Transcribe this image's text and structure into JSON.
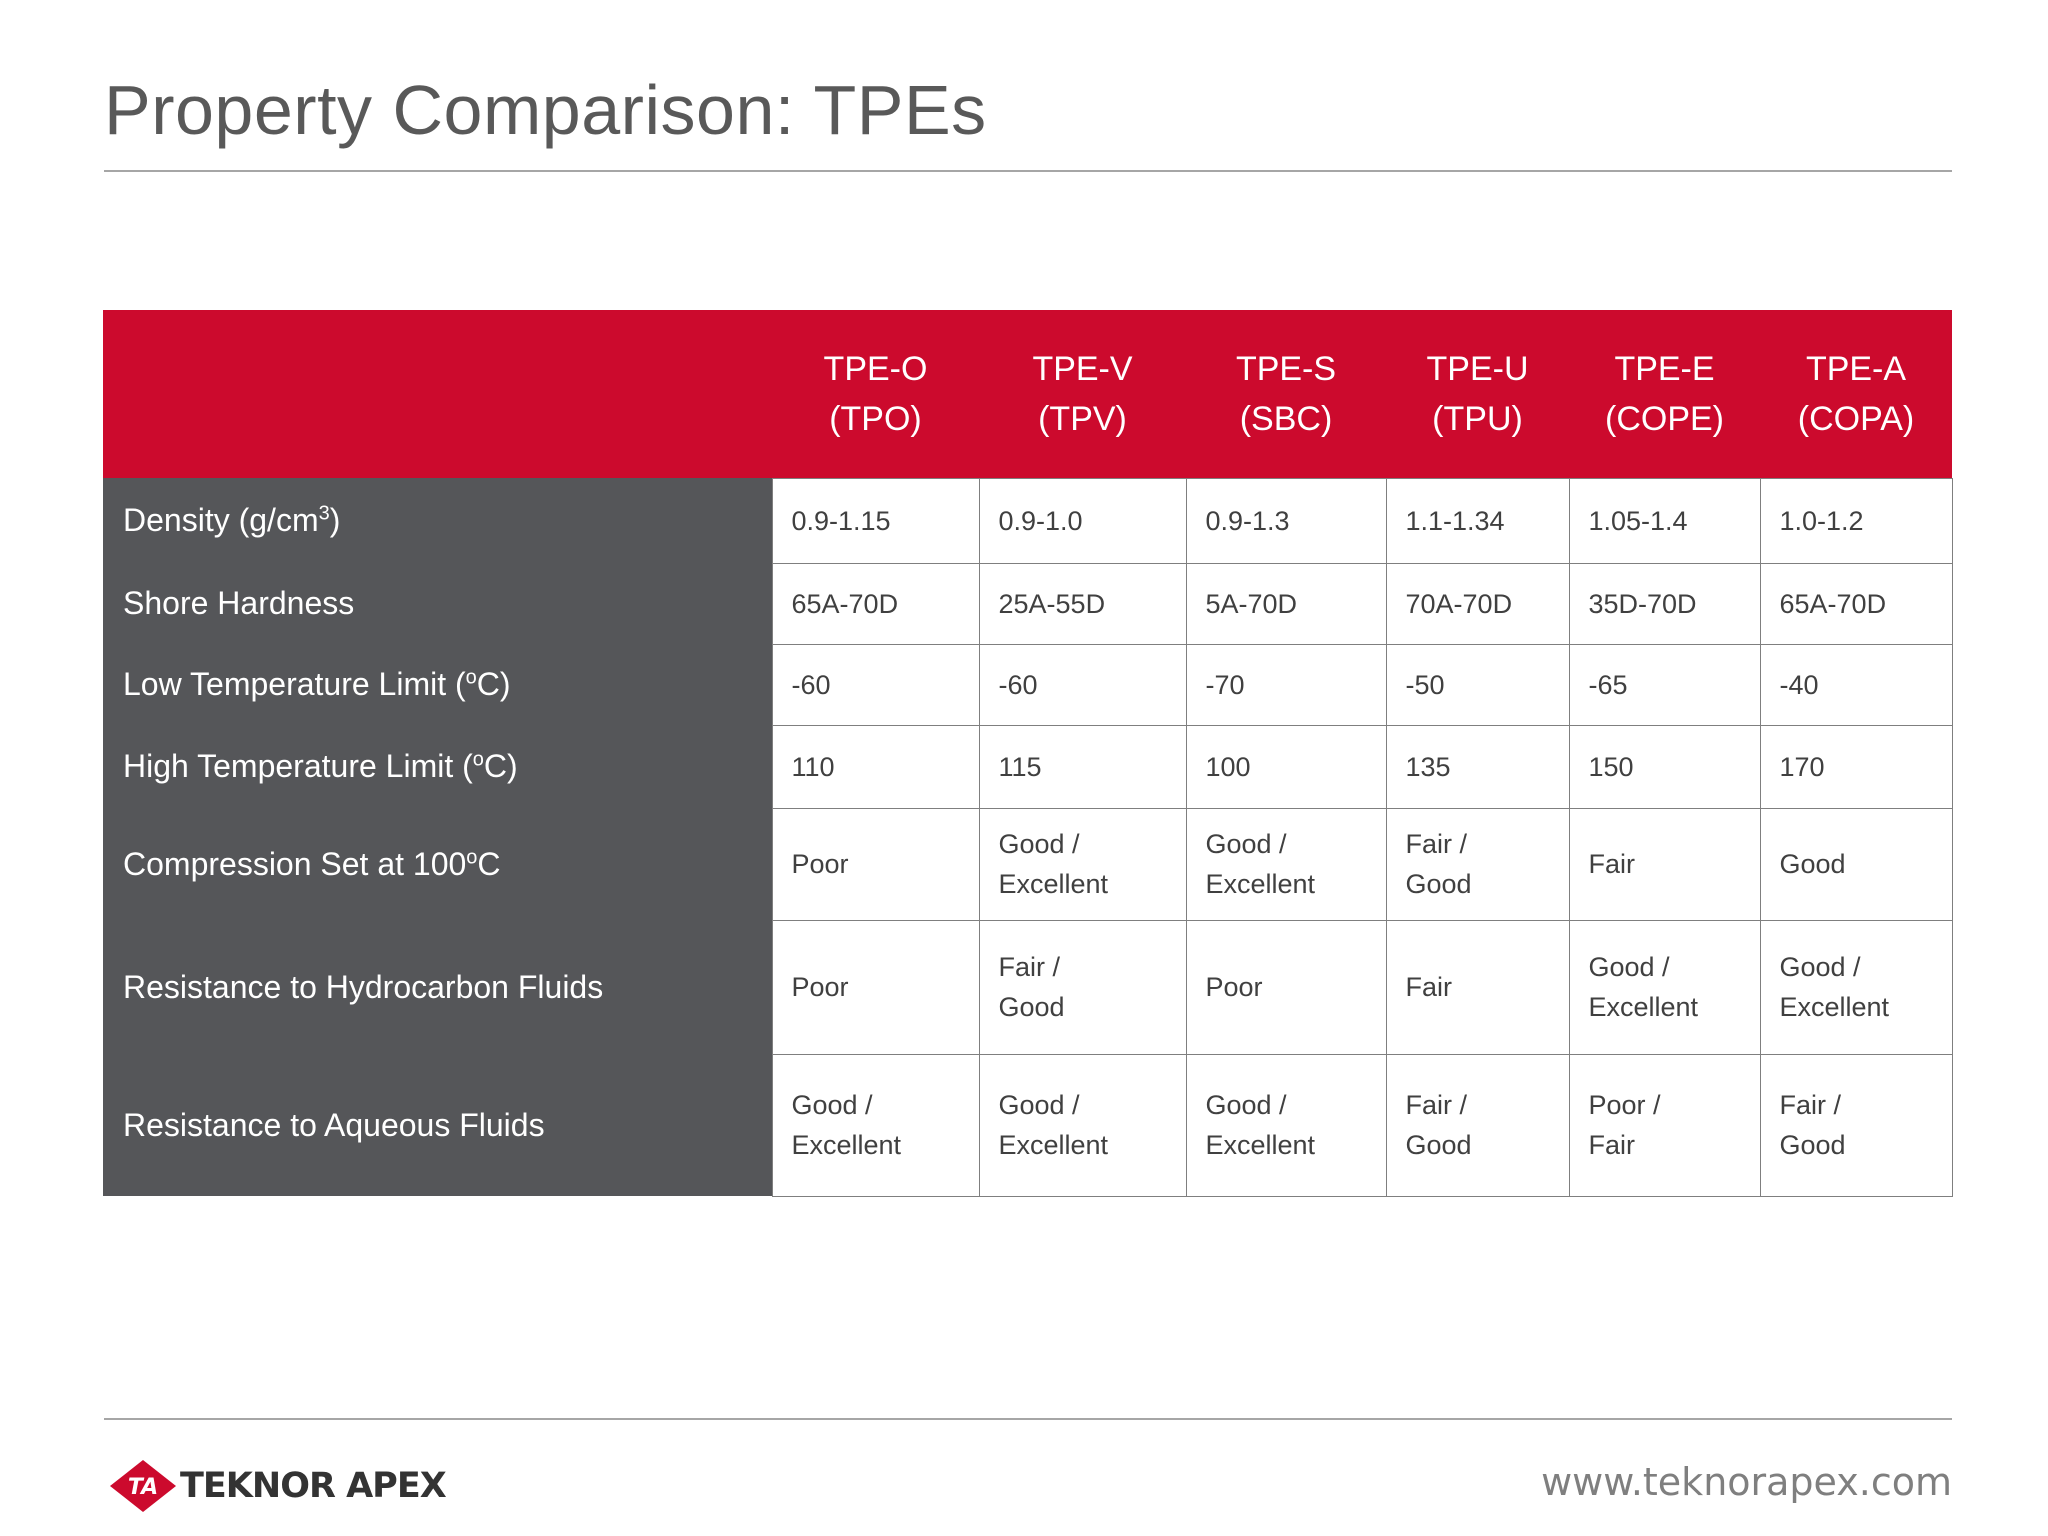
{
  "title": "Property Comparison: TPEs",
  "table": {
    "columns": [
      {
        "line1": "TPE-O",
        "line2": "(TPO)"
      },
      {
        "line1": "TPE-V",
        "line2": "(TPV)"
      },
      {
        "line1": "TPE-S",
        "line2": "(SBC)"
      },
      {
        "line1": "TPE-U",
        "line2": "(TPU)"
      },
      {
        "line1": "TPE-E",
        "line2": "(COPE)"
      },
      {
        "line1": "TPE-A",
        "line2": "(COPA)"
      }
    ],
    "rows": [
      {
        "label": "Density (g/cm",
        "label_sup": "3",
        "label_suffix": ")",
        "cells": [
          "0.9-1.15",
          "0.9-1.0",
          "0.9-1.3",
          "1.1-1.34",
          "1.05-1.4",
          "1.0-1.2"
        ]
      },
      {
        "label": "Shore Hardness",
        "label_sup": "",
        "label_suffix": "",
        "cells": [
          "65A-70D",
          "25A-55D",
          "5A-70D",
          "70A-70D",
          "35D-70D",
          "65A-70D"
        ]
      },
      {
        "label": "Low Temperature Limit (",
        "label_sup": "o",
        "label_suffix": "C)",
        "cells": [
          "-60",
          "-60",
          "-70",
          "-50",
          "-65",
          "-40"
        ]
      },
      {
        "label": "High Temperature Limit (",
        "label_sup": "o",
        "label_suffix": "C)",
        "cells": [
          "110",
          "115",
          "100",
          "135",
          "150",
          "170"
        ]
      },
      {
        "label": "Compression Set  at 100",
        "label_sup": "o",
        "label_suffix": "C",
        "cells": [
          "Poor",
          "Good /\nExcellent",
          "Good /\nExcellent",
          "Fair /\nGood",
          "Fair",
          "Good"
        ]
      },
      {
        "label": "Resistance to Hydrocarbon Fluids",
        "label_sup": "",
        "label_suffix": "",
        "cells": [
          "Poor",
          "Fair /\nGood",
          "Poor",
          "Fair",
          "Good /\nExcellent",
          "Good /\nExcellent"
        ]
      },
      {
        "label": "Resistance to Aqueous Fluids",
        "label_sup": "",
        "label_suffix": "",
        "cells": [
          "Good /\nExcellent",
          "Good /\nExcellent",
          "Good /\nExcellent",
          "Fair /\nGood",
          "Poor /\nFair",
          "Fair /\nGood"
        ]
      }
    ]
  },
  "footer": {
    "logo_badge": "TA",
    "logo_text": "TEKNOR APEX",
    "url": "www.teknorapex.com"
  },
  "colors": {
    "header_red": "#cc0a2d",
    "label_gray": "#555659",
    "title_gray": "#595959"
  }
}
